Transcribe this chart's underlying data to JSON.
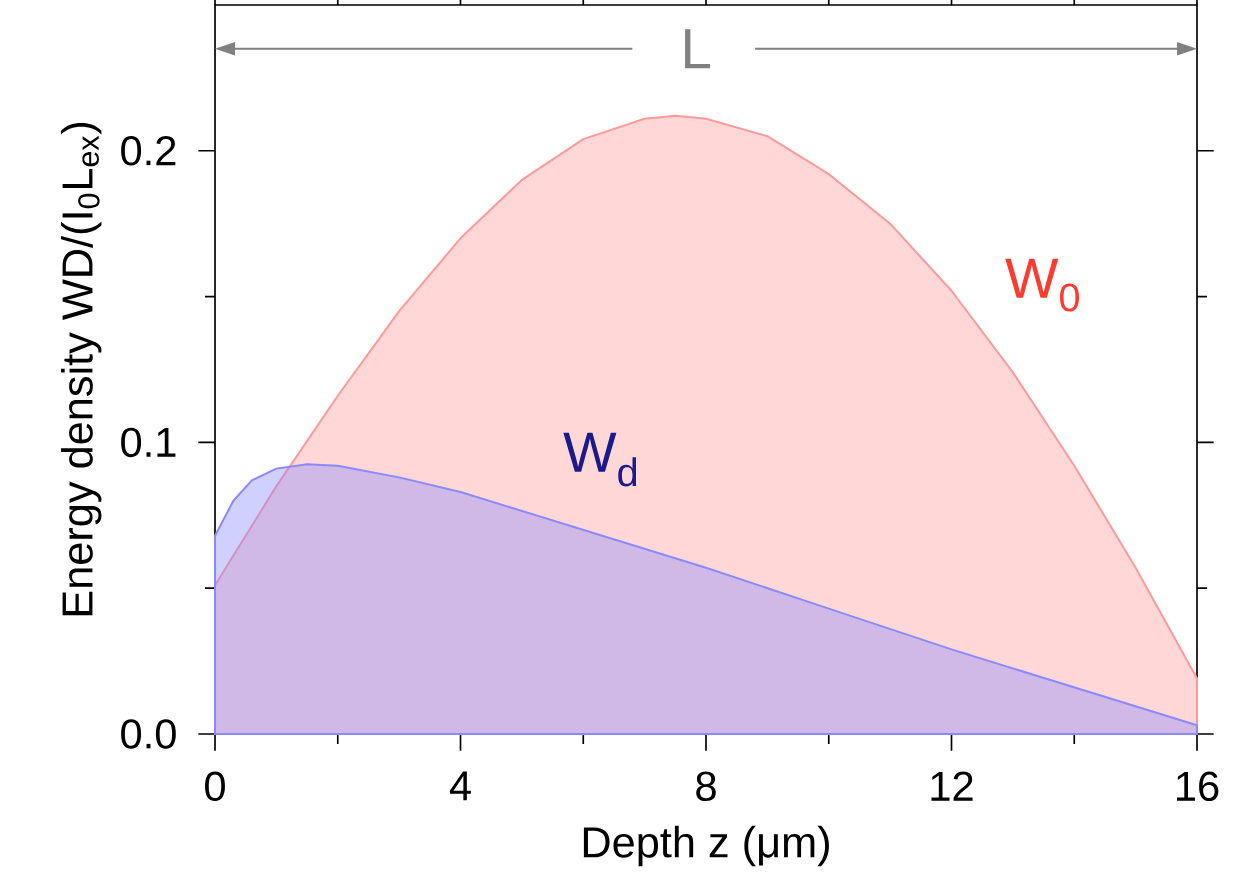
{
  "chart_data": {
    "type": "area",
    "xlabel": "Depth z (μm)",
    "ylabel": "Energy density WD/(I$_{0}$L$_{ex}$)",
    "xlim": [
      0,
      16
    ],
    "ylim": [
      0,
      0.25
    ],
    "xticks": [
      0,
      4,
      8,
      12,
      16
    ],
    "yticks": [
      {
        "value": 0,
        "label": "0.0"
      },
      {
        "value": 0.1,
        "label": "0.1"
      },
      {
        "value": 0.2,
        "label": "0.2"
      }
    ],
    "grid": false,
    "legend": false,
    "series": [
      {
        "name": "W$_{0}$",
        "color": "#ff9a9a",
        "x": [
          0,
          1,
          2,
          3,
          4,
          5,
          6,
          7,
          7.5,
          8,
          9,
          10,
          11,
          12,
          13,
          14,
          15,
          16
        ],
        "values": [
          0.051,
          0.085,
          0.116,
          0.145,
          0.17,
          0.19,
          0.204,
          0.211,
          0.212,
          0.211,
          0.205,
          0.192,
          0.175,
          0.152,
          0.124,
          0.092,
          0.057,
          0.019
        ]
      },
      {
        "name": "W$_{d}$",
        "color": "#8a8aff",
        "x": [
          0,
          0.3,
          0.6,
          1,
          1.5,
          2,
          3,
          4,
          6,
          8,
          10,
          12,
          14,
          16
        ],
        "values": [
          0.068,
          0.08,
          0.087,
          0.091,
          0.0925,
          0.092,
          0.088,
          0.083,
          0.07,
          0.057,
          0.043,
          0.029,
          0.016,
          0.003
        ]
      }
    ],
    "annotations": [
      "L"
    ]
  }
}
